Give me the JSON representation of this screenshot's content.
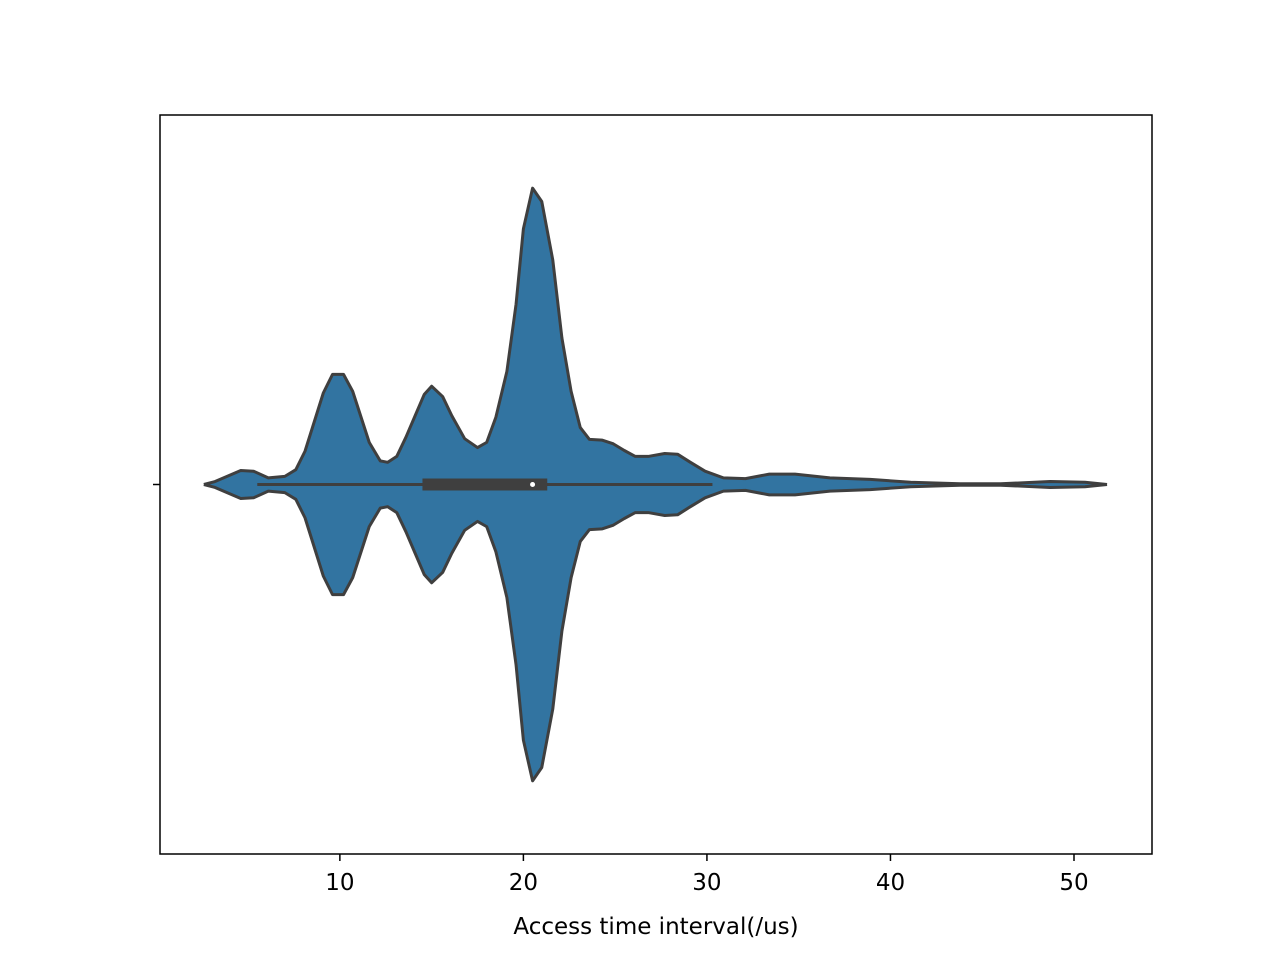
{
  "chart_data": {
    "type": "violin",
    "xlabel": "Access time interval(/us)",
    "xlim": [
      0.2,
      54.25
    ],
    "xticks": [
      10,
      20,
      30,
      40,
      50
    ],
    "ylim": [
      -0.5,
      0.5
    ],
    "categories": [
      null
    ],
    "color": "#3274a1",
    "edge_color": "#3f3f3f",
    "x": [
      2.59,
      3.2,
      4.6,
      5.3,
      6.1,
      7.0,
      7.6,
      8.1,
      9.1,
      9.6,
      10.2,
      10.7,
      11.6,
      12.2,
      12.6,
      13.1,
      13.6,
      14.1,
      14.6,
      15.0,
      15.6,
      16.1,
      16.8,
      17.5,
      18.0,
      18.5,
      19.1,
      19.6,
      20.0,
      20.5,
      21.0,
      21.6,
      22.1,
      22.6,
      23.1,
      23.6,
      24.3,
      24.9,
      25.5,
      26.1,
      26.8,
      27.7,
      28.4,
      29.1,
      29.9,
      30.9,
      32.1,
      33.4,
      34.8,
      36.7,
      38.9,
      41.1,
      43.8,
      46.0,
      48.7,
      50.6,
      51.8
    ],
    "widths": [
      0,
      0.004,
      0.019,
      0.018,
      0.009,
      0.011,
      0.02,
      0.045,
      0.124,
      0.149,
      0.149,
      0.126,
      0.057,
      0.032,
      0.03,
      0.038,
      0.064,
      0.093,
      0.122,
      0.133,
      0.119,
      0.093,
      0.062,
      0.05,
      0.057,
      0.091,
      0.153,
      0.244,
      0.346,
      0.401,
      0.383,
      0.304,
      0.198,
      0.126,
      0.077,
      0.061,
      0.06,
      0.055,
      0.046,
      0.038,
      0.038,
      0.042,
      0.041,
      0.03,
      0.018,
      0.009,
      0.008,
      0.014,
      0.014,
      0.009,
      0.007,
      0.003,
      0.001,
      0.001,
      0.004,
      0.003,
      0
    ],
    "box": {
      "whisker_low": 5.5,
      "q1": 14.5,
      "median": 20.5,
      "q3": 21.3,
      "whisker_high": 30.3
    }
  }
}
